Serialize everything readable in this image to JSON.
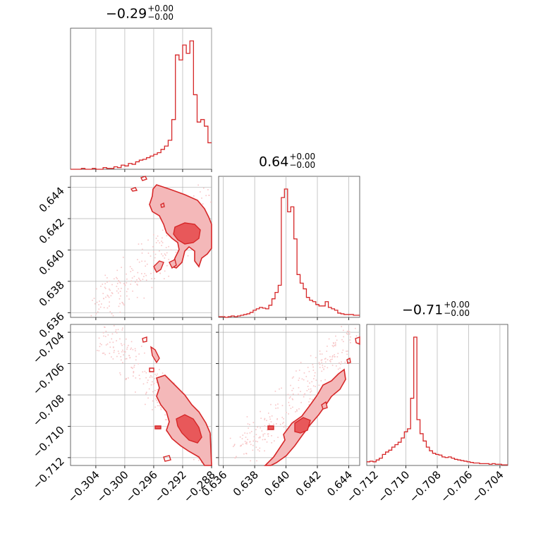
{
  "chart_data": [
    {
      "type": "histogram",
      "id": "hist-p0",
      "title": {
        "value": "−0.29",
        "upper": "+0.00",
        "lower": "−0.00"
      },
      "xlim": [
        -0.3075,
        -0.288
      ],
      "bins": [
        -0.3075,
        -0.307,
        -0.3065,
        -0.306,
        -0.3055,
        -0.305,
        -0.3045,
        -0.304,
        -0.3035,
        -0.303,
        -0.3025,
        -0.302,
        -0.3015,
        -0.301,
        -0.3005,
        -0.3,
        -0.2995,
        -0.299,
        -0.2985,
        -0.298,
        -0.2975,
        -0.297,
        -0.2965,
        -0.296,
        -0.2955,
        -0.295,
        -0.2945,
        -0.294,
        -0.2935,
        -0.293,
        -0.2925,
        -0.292,
        -0.2915,
        -0.291,
        -0.2905,
        -0.29,
        -0.2895,
        -0.289,
        -0.2885,
        -0.288
      ],
      "counts": [
        0,
        0,
        0,
        1,
        0,
        0,
        1,
        0,
        0,
        2,
        1,
        1,
        3,
        2,
        5,
        4,
        7,
        6,
        9,
        11,
        12,
        14,
        16,
        18,
        20,
        24,
        28,
        35,
        60,
        138,
        132,
        150,
        140,
        155,
        90,
        57,
        60,
        52,
        32
      ]
    },
    {
      "type": "histogram",
      "id": "hist-p1",
      "title": {
        "value": "0.64",
        "upper": "+0.00",
        "lower": "−0.00"
      },
      "xlim": [
        0.6357,
        0.6447
      ],
      "bins": [
        0.6357,
        0.6359,
        0.6361,
        0.6363,
        0.6365,
        0.6367,
        0.6369,
        0.6371,
        0.6373,
        0.6375,
        0.6377,
        0.6379,
        0.6381,
        0.6383,
        0.6385,
        0.6387,
        0.6389,
        0.6391,
        0.6393,
        0.6395,
        0.6397,
        0.6399,
        0.6401,
        0.6403,
        0.6405,
        0.6407,
        0.6409,
        0.6411,
        0.6413,
        0.6415,
        0.6417,
        0.6419,
        0.6421,
        0.6423,
        0.6425,
        0.6427,
        0.6429,
        0.6431,
        0.6433,
        0.6435,
        0.6437,
        0.6439,
        0.6441,
        0.6443,
        0.6445,
        0.6447
      ],
      "counts": [
        1,
        1,
        0,
        1,
        2,
        1,
        2,
        3,
        4,
        5,
        7,
        10,
        12,
        14,
        13,
        12,
        17,
        26,
        35,
        45,
        168,
        180,
        148,
        155,
        110,
        60,
        48,
        40,
        28,
        24,
        22,
        18,
        16,
        16,
        22,
        14,
        12,
        10,
        6,
        5,
        4,
        4,
        4,
        3,
        3
      ]
    },
    {
      "type": "histogram",
      "id": "hist-p2",
      "title": {
        "value": "−0.71",
        "upper": "+0.00",
        "lower": "−0.00"
      },
      "xlim": [
        -0.7125,
        -0.7035
      ],
      "bins": [
        -0.7125,
        -0.7123,
        -0.7121,
        -0.7119,
        -0.7117,
        -0.7115,
        -0.7113,
        -0.7111,
        -0.7109,
        -0.7107,
        -0.7105,
        -0.7103,
        -0.7101,
        -0.7099,
        -0.7097,
        -0.7095,
        -0.7093,
        -0.7091,
        -0.7089,
        -0.7087,
        -0.7085,
        -0.7083,
        -0.7081,
        -0.7079,
        -0.7077,
        -0.7075,
        -0.7073,
        -0.7071,
        -0.7069,
        -0.7067,
        -0.7065,
        -0.7063,
        -0.7061,
        -0.7059,
        -0.7057,
        -0.7055,
        -0.7053,
        -0.7051,
        -0.7049,
        -0.7047,
        -0.7045,
        -0.7043,
        -0.7041,
        -0.7039,
        -0.7037,
        -0.7035
      ],
      "counts": [
        6,
        7,
        6,
        9,
        12,
        18,
        22,
        25,
        30,
        34,
        38,
        45,
        55,
        60,
        110,
        210,
        75,
        52,
        40,
        30,
        24,
        20,
        18,
        17,
        14,
        13,
        14,
        12,
        10,
        9,
        8,
        7,
        6,
        5,
        4,
        4,
        3,
        3,
        3,
        2,
        3,
        2,
        2,
        1,
        1
      ]
    },
    {
      "type": "contour",
      "id": "contour-p0-p1",
      "xlim": [
        -0.3075,
        -0.288
      ],
      "ylim": [
        0.6357,
        0.6447
      ]
    },
    {
      "type": "contour",
      "id": "contour-p0-p2",
      "xlim": [
        -0.3075,
        -0.288
      ],
      "ylim": [
        -0.7125,
        -0.7035
      ]
    },
    {
      "type": "contour",
      "id": "contour-p1-p2",
      "xlim": [
        0.6357,
        0.6447
      ],
      "ylim": [
        -0.7125,
        -0.7035
      ]
    }
  ],
  "axes": {
    "x0_ticks": [
      -0.304,
      -0.3,
      -0.296,
      -0.292,
      -0.288
    ],
    "x0_labels": [
      "−0.304",
      "−0.300",
      "−0.296",
      "−0.292",
      "−0.288"
    ],
    "x1_ticks": [
      0.636,
      0.638,
      0.64,
      0.642,
      0.644
    ],
    "x1_labels": [
      "0.636",
      "0.638",
      "0.640",
      "0.642",
      "0.644"
    ],
    "x2_ticks": [
      -0.712,
      -0.71,
      -0.708,
      -0.706,
      -0.704
    ],
    "x2_labels": [
      "−0.712",
      "−0.710",
      "−0.708",
      "−0.706",
      "−0.704"
    ],
    "y1_ticks": [
      0.636,
      0.638,
      0.64,
      0.642,
      0.644
    ],
    "y1_labels": [
      "0.636",
      "0.638",
      "0.640",
      "0.642",
      "0.644"
    ],
    "y2_ticks": [
      -0.712,
      -0.71,
      -0.708,
      -0.706,
      -0.704
    ],
    "y2_labels": [
      "−0.712",
      "−0.710",
      "−0.708",
      "−0.706",
      "−0.704"
    ]
  },
  "colors": {
    "line": "#d62728",
    "fill_inner": "#e8585a",
    "fill_outer": "#f4b8b9",
    "scatter": "#f7c5c6",
    "grid": "#b0b0b0",
    "frame": "#444444"
  }
}
